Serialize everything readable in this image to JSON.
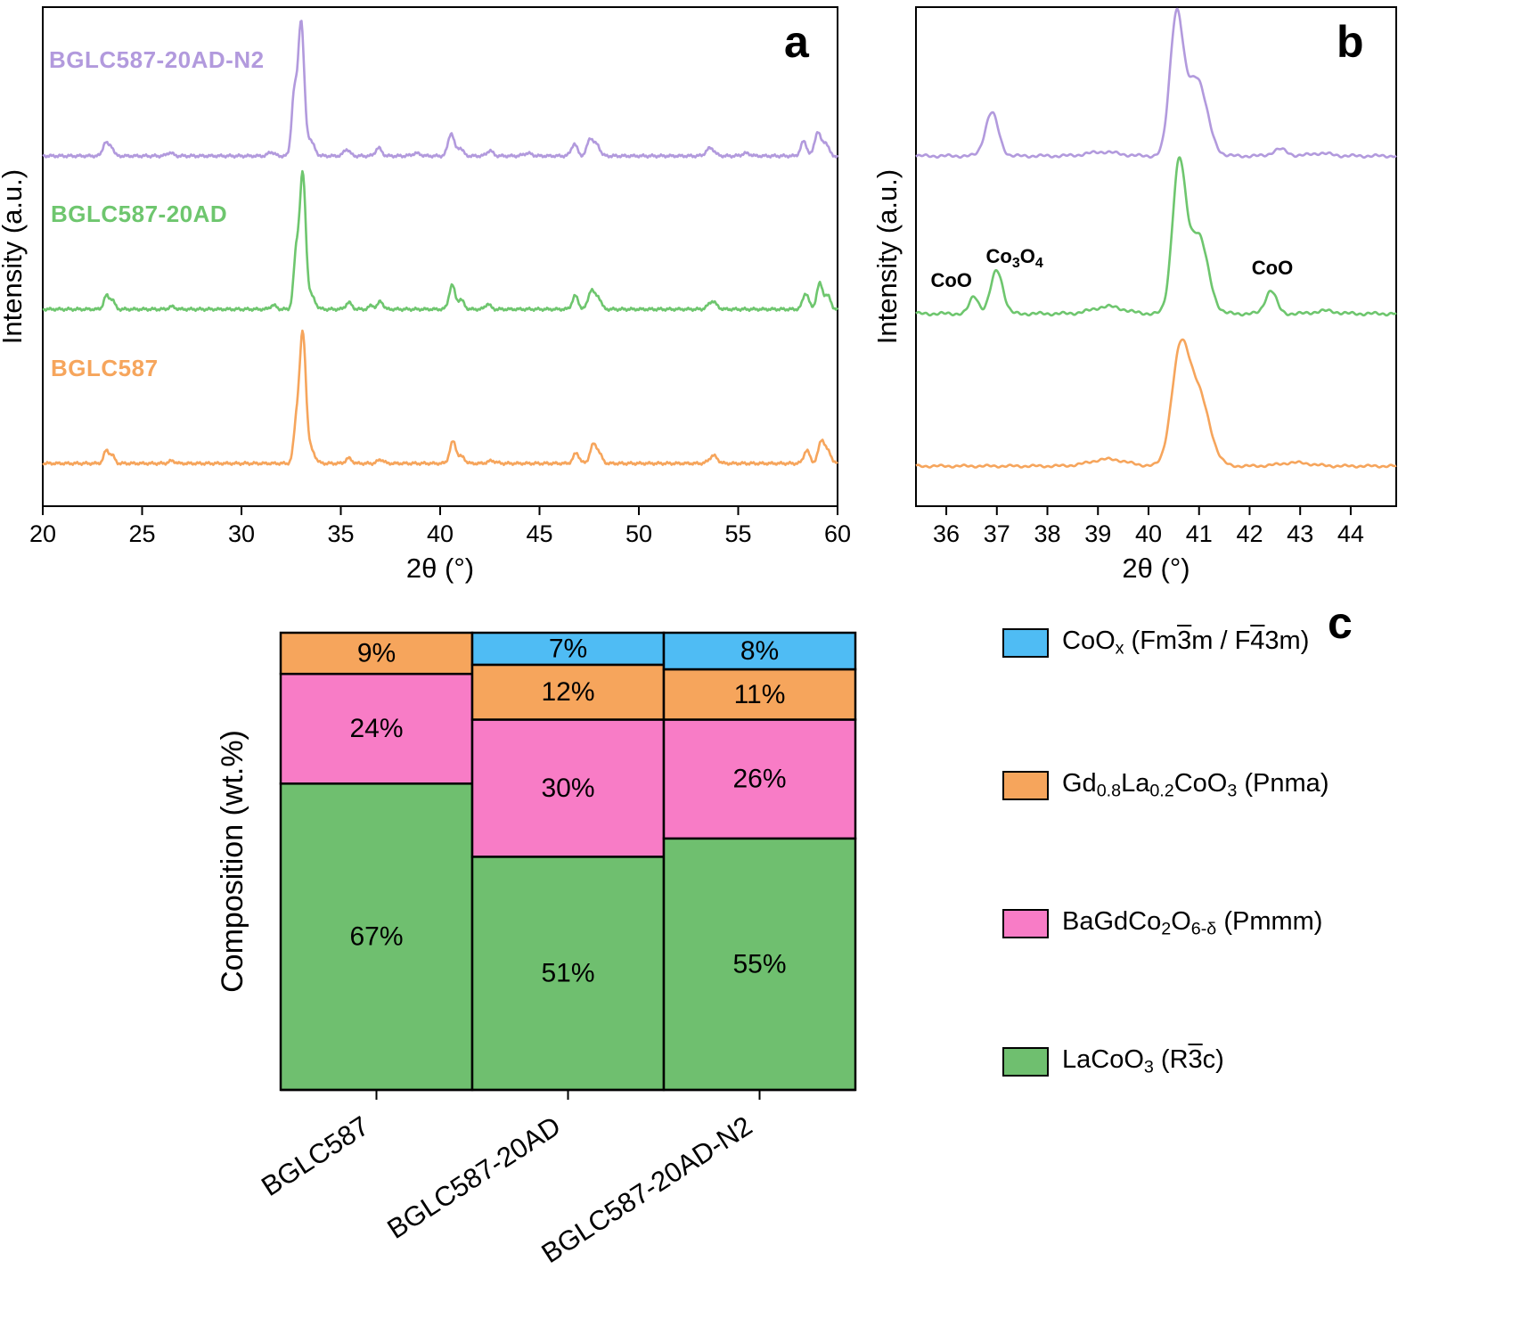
{
  "chart_data": [
    {
      "type": "line",
      "panel": "a",
      "panel_letter": "a",
      "xlabel": "2θ (°)",
      "ylabel": "Intensity (a.u.)",
      "xlim": [
        20,
        60
      ],
      "xticks": [
        20,
        25,
        30,
        35,
        40,
        45,
        50,
        55,
        60
      ],
      "grid": false,
      "legend_position": "inline-trace-labels",
      "series": [
        {
          "name": "BGLC587-20AD-N2",
          "color": "#b29add",
          "peaks": [
            {
              "c": 23.15,
              "h": 0.1,
              "w": 0.13
            },
            {
              "c": 23.45,
              "h": 0.07,
              "w": 0.12
            },
            {
              "c": 26.4,
              "h": 0.025,
              "w": 0.15
            },
            {
              "c": 31.5,
              "h": 0.03,
              "w": 0.15
            },
            {
              "c": 32.65,
              "h": 0.45,
              "w": 0.13
            },
            {
              "c": 33.0,
              "h": 1.0,
              "w": 0.15
            },
            {
              "c": 33.45,
              "h": 0.12,
              "w": 0.2
            },
            {
              "c": 35.3,
              "h": 0.05,
              "w": 0.15
            },
            {
              "c": 36.9,
              "h": 0.06,
              "w": 0.15
            },
            {
              "c": 38.8,
              "h": 0.02,
              "w": 0.2
            },
            {
              "c": 40.55,
              "h": 0.17,
              "w": 0.15
            },
            {
              "c": 41.0,
              "h": 0.06,
              "w": 0.15
            },
            {
              "c": 42.5,
              "h": 0.04,
              "w": 0.15
            },
            {
              "c": 44.4,
              "h": 0.02,
              "w": 0.2
            },
            {
              "c": 46.75,
              "h": 0.09,
              "w": 0.15
            },
            {
              "c": 47.55,
              "h": 0.13,
              "w": 0.15
            },
            {
              "c": 47.9,
              "h": 0.08,
              "w": 0.15
            },
            {
              "c": 53.6,
              "h": 0.06,
              "w": 0.2
            },
            {
              "c": 55.4,
              "h": 0.02,
              "w": 0.2
            },
            {
              "c": 58.3,
              "h": 0.11,
              "w": 0.15
            },
            {
              "c": 59.0,
              "h": 0.18,
              "w": 0.15
            },
            {
              "c": 59.4,
              "h": 0.1,
              "w": 0.15
            }
          ]
        },
        {
          "name": "BGLC587-20AD",
          "color": "#6ec66e",
          "peaks": [
            {
              "c": 23.2,
              "h": 0.1,
              "w": 0.13
            },
            {
              "c": 23.5,
              "h": 0.07,
              "w": 0.12
            },
            {
              "c": 26.5,
              "h": 0.02,
              "w": 0.15
            },
            {
              "c": 31.6,
              "h": 0.03,
              "w": 0.15
            },
            {
              "c": 32.75,
              "h": 0.4,
              "w": 0.13
            },
            {
              "c": 33.08,
              "h": 1.0,
              "w": 0.15
            },
            {
              "c": 33.5,
              "h": 0.1,
              "w": 0.2
            },
            {
              "c": 35.4,
              "h": 0.05,
              "w": 0.15
            },
            {
              "c": 36.55,
              "h": 0.03,
              "w": 0.12
            },
            {
              "c": 37.0,
              "h": 0.06,
              "w": 0.13
            },
            {
              "c": 40.6,
              "h": 0.18,
              "w": 0.15
            },
            {
              "c": 41.05,
              "h": 0.07,
              "w": 0.15
            },
            {
              "c": 42.4,
              "h": 0.04,
              "w": 0.13
            },
            {
              "c": 46.8,
              "h": 0.1,
              "w": 0.15
            },
            {
              "c": 47.6,
              "h": 0.14,
              "w": 0.15
            },
            {
              "c": 47.95,
              "h": 0.09,
              "w": 0.15
            },
            {
              "c": 53.7,
              "h": 0.06,
              "w": 0.2
            },
            {
              "c": 58.4,
              "h": 0.12,
              "w": 0.15
            },
            {
              "c": 59.1,
              "h": 0.19,
              "w": 0.15
            },
            {
              "c": 59.5,
              "h": 0.1,
              "w": 0.15
            }
          ]
        },
        {
          "name": "BGLC587",
          "color": "#f6a55c",
          "peaks": [
            {
              "c": 23.2,
              "h": 0.1,
              "w": 0.13
            },
            {
              "c": 23.5,
              "h": 0.06,
              "w": 0.12
            },
            {
              "c": 26.5,
              "h": 0.02,
              "w": 0.15
            },
            {
              "c": 32.75,
              "h": 0.28,
              "w": 0.13
            },
            {
              "c": 33.08,
              "h": 1.0,
              "w": 0.16
            },
            {
              "c": 33.5,
              "h": 0.1,
              "w": 0.2
            },
            {
              "c": 35.4,
              "h": 0.04,
              "w": 0.15
            },
            {
              "c": 37.0,
              "h": 0.03,
              "w": 0.15
            },
            {
              "c": 40.65,
              "h": 0.17,
              "w": 0.16
            },
            {
              "c": 41.1,
              "h": 0.05,
              "w": 0.15
            },
            {
              "c": 42.6,
              "h": 0.02,
              "w": 0.2
            },
            {
              "c": 46.85,
              "h": 0.08,
              "w": 0.15
            },
            {
              "c": 47.7,
              "h": 0.14,
              "w": 0.16
            },
            {
              "c": 48.0,
              "h": 0.07,
              "w": 0.15
            },
            {
              "c": 53.75,
              "h": 0.06,
              "w": 0.2
            },
            {
              "c": 58.45,
              "h": 0.1,
              "w": 0.15
            },
            {
              "c": 59.2,
              "h": 0.18,
              "w": 0.16
            },
            {
              "c": 59.55,
              "h": 0.08,
              "w": 0.15
            }
          ]
        }
      ]
    },
    {
      "type": "line",
      "panel": "b",
      "panel_letter": "b",
      "xlabel": "2θ (°)",
      "ylabel": "Intensity (a.u.)",
      "xlim": [
        35.4,
        44.9
      ],
      "xticks": [
        36,
        37,
        38,
        39,
        40,
        41,
        42,
        43,
        44
      ],
      "grid": false,
      "series": [
        {
          "name": "BGLC587-20AD-N2",
          "color": "#b29add",
          "peaks": [
            {
              "c": 36.9,
              "h": 0.32,
              "w": 0.13
            },
            {
              "c": 39.1,
              "h": 0.03,
              "w": 0.3
            },
            {
              "c": 40.55,
              "h": 1.0,
              "w": 0.13
            },
            {
              "c": 40.95,
              "h": 0.58,
              "w": 0.2
            },
            {
              "c": 42.6,
              "h": 0.05,
              "w": 0.14
            },
            {
              "c": 43.4,
              "h": 0.02,
              "w": 0.2
            }
          ]
        },
        {
          "name": "BGLC587-20AD",
          "color": "#6ec66e",
          "peaks": [
            {
              "c": 36.55,
              "h": 0.12,
              "w": 0.09
            },
            {
              "c": 37.0,
              "h": 0.3,
              "w": 0.12
            },
            {
              "c": 39.2,
              "h": 0.05,
              "w": 0.3
            },
            {
              "c": 40.6,
              "h": 1.0,
              "w": 0.13
            },
            {
              "c": 40.98,
              "h": 0.55,
              "w": 0.19
            },
            {
              "c": 42.42,
              "h": 0.16,
              "w": 0.11
            },
            {
              "c": 43.5,
              "h": 0.02,
              "w": 0.2
            }
          ]
        },
        {
          "name": "BGLC587",
          "color": "#f6a55c",
          "peaks": [
            {
              "c": 39.2,
              "h": 0.06,
              "w": 0.35
            },
            {
              "c": 40.62,
              "h": 0.9,
              "w": 0.17
            },
            {
              "c": 40.98,
              "h": 0.62,
              "w": 0.22
            },
            {
              "c": 42.9,
              "h": 0.03,
              "w": 0.3
            }
          ]
        }
      ],
      "annotations": [
        {
          "x": 36.1,
          "y": 322,
          "segments": [
            {
              "t": "CoO"
            }
          ]
        },
        {
          "x": 37.35,
          "y": 295,
          "segments": [
            {
              "t": "Co"
            },
            {
              "t": "3",
              "sub": true
            },
            {
              "t": "O"
            },
            {
              "t": "4",
              "sub": true
            }
          ]
        },
        {
          "x": 42.45,
          "y": 308,
          "segments": [
            {
              "t": "CoO"
            }
          ]
        }
      ]
    },
    {
      "type": "stacked_bar",
      "panel": "c",
      "panel_letter": "c",
      "ylabel": "Composition (wt.%)",
      "ylim": [
        0,
        100
      ],
      "grid": false,
      "legend_position": "right",
      "categories": [
        "BGLC587",
        "BGLC587-20AD",
        "BGLC587-20AD-N2"
      ],
      "series": [
        {
          "name": "LaCoO3 (R-3c)",
          "color": "#6fbf6f",
          "values": [
            67,
            51,
            55
          ]
        },
        {
          "name": "BaGdCo2O6-δ (Pmmm)",
          "color": "#f87cc6",
          "values": [
            24,
            30,
            26
          ]
        },
        {
          "name": "Gd0.8La0.2CoO3 (Pnma)",
          "color": "#f6a55c",
          "values": [
            9,
            12,
            11
          ]
        },
        {
          "name": "CoOx (Fm-3m / F-43m)",
          "color": "#4fbcf4",
          "values": [
            0,
            7,
            8
          ]
        }
      ],
      "value_suffix": "%",
      "legend": [
        {
          "color": "#4fbcf4",
          "segments": [
            {
              "t": "CoO"
            },
            {
              "t": "x",
              "sub": true
            },
            {
              "t": " (Fm"
            },
            {
              "t": "3",
              "bar": true
            },
            {
              "t": "m / F"
            },
            {
              "t": "4",
              "bar": true
            },
            {
              "t": "3m)"
            }
          ]
        },
        {
          "color": "#f6a55c",
          "segments": [
            {
              "t": "Gd"
            },
            {
              "t": "0.8",
              "sub": true
            },
            {
              "t": "La"
            },
            {
              "t": "0.2",
              "sub": true
            },
            {
              "t": "CoO"
            },
            {
              "t": "3",
              "sub": true
            },
            {
              "t": " (Pnma)"
            }
          ]
        },
        {
          "color": "#f87cc6",
          "segments": [
            {
              "t": "BaGdCo"
            },
            {
              "t": "2",
              "sub": true
            },
            {
              "t": "O"
            },
            {
              "t": "6-δ",
              "sub": true
            },
            {
              "t": " (Pmmm)"
            }
          ]
        },
        {
          "color": "#6fbf6f",
          "segments": [
            {
              "t": "LaCoO"
            },
            {
              "t": "3",
              "sub": true
            },
            {
              "t": " (R"
            },
            {
              "t": "3",
              "bar": true
            },
            {
              "t": "c)"
            }
          ]
        }
      ]
    }
  ]
}
